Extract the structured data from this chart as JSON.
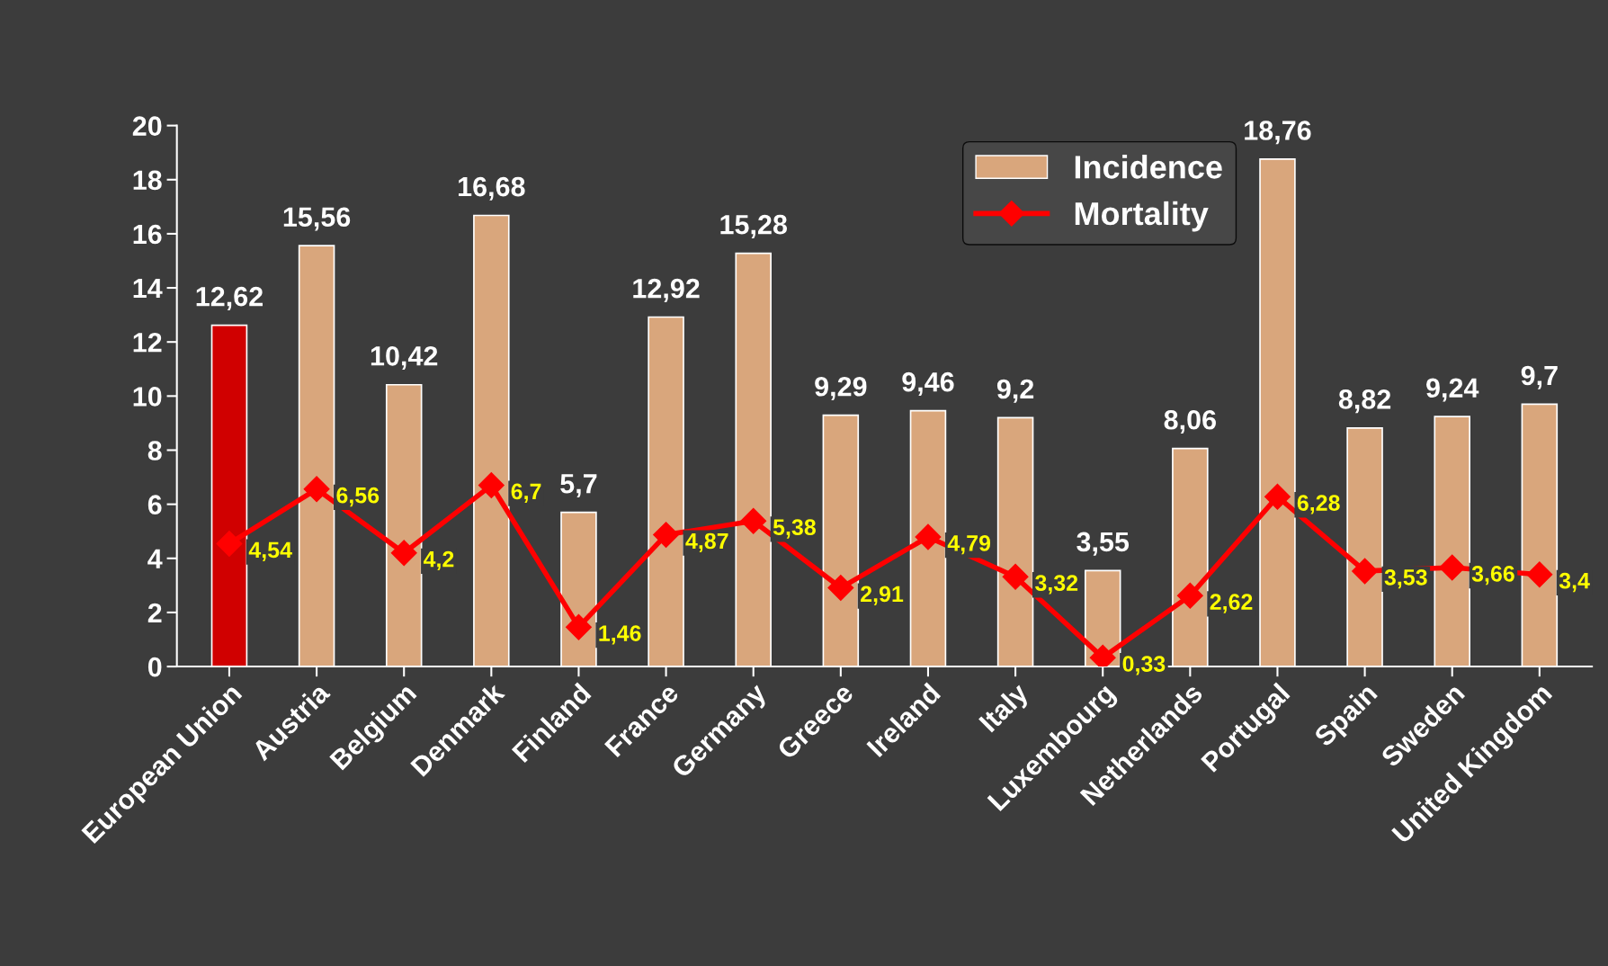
{
  "chart_data": {
    "type": "bar",
    "categories": [
      "European Union",
      "Austria",
      "Belgium",
      "Denmark",
      "Finland",
      "France",
      "Germany",
      "Greece",
      "Ireland",
      "Italy",
      "Luxembourg",
      "Netherlands",
      "Portugal",
      "Spain",
      "Sweden",
      "United Kingdom"
    ],
    "series": [
      {
        "name": "Incidence",
        "color": "#d9a67c",
        "colors": [
          "#d00000",
          "#d9a67c",
          "#d9a67c",
          "#d9a67c",
          "#d9a67c",
          "#d9a67c",
          "#d9a67c",
          "#d9a67c",
          "#d9a67c",
          "#d9a67c",
          "#d9a67c",
          "#d9a67c",
          "#d9a67c",
          "#d9a67c",
          "#d9a67c",
          "#d9a67c"
        ],
        "values": [
          12.62,
          15.56,
          10.42,
          16.68,
          5.7,
          12.92,
          15.28,
          9.29,
          9.46,
          9.2,
          3.55,
          8.06,
          18.76,
          8.82,
          9.24,
          9.7
        ],
        "value_labels": [
          "12,62",
          "15,56",
          "10,42",
          "16,68",
          "5,7",
          "12,92",
          "15,28",
          "9,29",
          "9,46",
          "9,2",
          "3,55",
          "8,06",
          "18,76",
          "8,82",
          "9,24",
          "9,7"
        ]
      },
      {
        "name": "Mortality",
        "type": "line",
        "color": "#ff0000",
        "marker": "diamond",
        "values": [
          4.54,
          6.56,
          4.2,
          6.7,
          1.46,
          4.87,
          5.38,
          2.91,
          4.79,
          3.32,
          0.33,
          2.62,
          6.28,
          3.53,
          3.66,
          3.4
        ],
        "value_labels": [
          "4,54",
          "6,56",
          "4,2",
          "6,7",
          "1,46",
          "4,87",
          "5,38",
          "2,91",
          "4,79",
          "3,32",
          "0,33",
          "2,62",
          "6,28",
          "3,53",
          "3,66",
          "3,4"
        ]
      }
    ],
    "ylim": [
      0,
      20
    ],
    "yticks": [
      0,
      2,
      4,
      6,
      8,
      10,
      12,
      14,
      16,
      18,
      20
    ],
    "grid": false,
    "legend": "top right"
  }
}
